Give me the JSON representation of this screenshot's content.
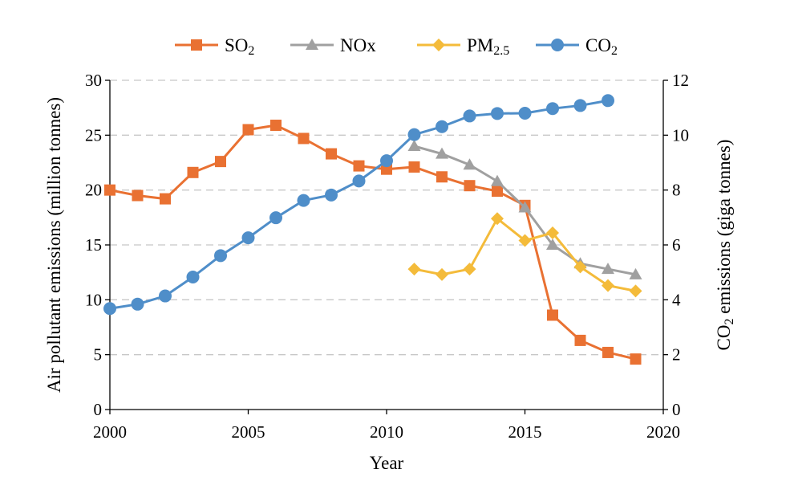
{
  "colors": {
    "so2": "#E97132",
    "nox": "#A0A0A0",
    "pm25": "#F4BB3A",
    "co2": "#4F8EC9"
  },
  "chart_data": {
    "type": "line",
    "title": "",
    "xlabel": "Year",
    "ylabel_left": "Air pollutant emissions (million tonnes)",
    "ylabel_right_main": "CO",
    "ylabel_right_sub": "2",
    "ylabel_right_rest": " emissions (giga tonnes)",
    "xlim": [
      2000,
      2020
    ],
    "ylim_left": [
      0,
      30
    ],
    "ylim_right": [
      0,
      12
    ],
    "x_ticks": [
      "2000",
      "2005",
      "2010",
      "2015",
      "2020"
    ],
    "y_left_ticks": [
      "0",
      "5",
      "10",
      "15",
      "20",
      "25",
      "30"
    ],
    "y_right_ticks": [
      "0",
      "2",
      "4",
      "6",
      "8",
      "10",
      "12"
    ],
    "grid": true,
    "legend_position": "top-center",
    "series": [
      {
        "key": "so2",
        "name_main": "SO",
        "name_sub": "2",
        "axis": "left",
        "marker": "square",
        "x": [
          2000,
          2001,
          2002,
          2003,
          2004,
          2005,
          2006,
          2007,
          2008,
          2009,
          2010,
          2011,
          2012,
          2013,
          2014,
          2015,
          2016,
          2017,
          2018,
          2019
        ],
        "values": [
          20.0,
          19.5,
          19.2,
          21.6,
          22.6,
          25.5,
          25.9,
          24.7,
          23.3,
          22.2,
          21.9,
          22.1,
          21.2,
          20.4,
          19.9,
          18.6,
          8.6,
          6.3,
          5.2,
          4.6
        ]
      },
      {
        "key": "nox",
        "name_main": "NOx",
        "name_sub": "",
        "axis": "left",
        "marker": "triangle",
        "x": [
          2011,
          2012,
          2013,
          2014,
          2015,
          2016,
          2017,
          2018,
          2019
        ],
        "values": [
          24.0,
          23.3,
          22.3,
          20.8,
          18.4,
          15.0,
          13.3,
          12.8,
          12.3
        ]
      },
      {
        "key": "pm25",
        "name_main": "PM",
        "name_sub": "2.5",
        "axis": "left",
        "marker": "diamond",
        "x": [
          2011,
          2012,
          2013,
          2014,
          2015,
          2016,
          2017,
          2018,
          2019
        ],
        "values": [
          12.8,
          12.3,
          12.8,
          17.4,
          15.4,
          16.1,
          13.0,
          11.3,
          10.8
        ]
      },
      {
        "key": "co2",
        "name_main": "CO",
        "name_sub": "2",
        "axis": "right",
        "marker": "circle",
        "x": [
          2000,
          2001,
          2002,
          2003,
          2004,
          2005,
          2006,
          2007,
          2008,
          2009,
          2010,
          2011,
          2012,
          2013,
          2014,
          2015,
          2016,
          2017,
          2018
        ],
        "values": [
          3.68,
          3.84,
          4.14,
          4.83,
          5.61,
          6.26,
          6.99,
          7.62,
          7.82,
          8.33,
          9.07,
          10.02,
          10.31,
          10.7,
          10.79,
          10.8,
          10.97,
          11.08,
          11.26
        ]
      }
    ]
  }
}
